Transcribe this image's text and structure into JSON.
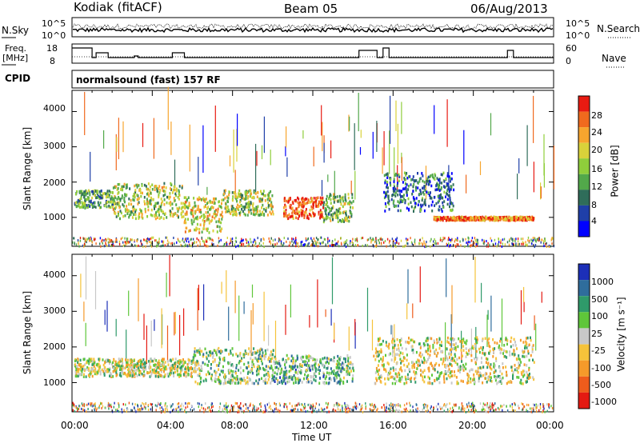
{
  "header": {
    "station": "Kodiak  (fitACF)",
    "beam": "Beam 05",
    "date": "06/Aug/2013"
  },
  "sky_panel": {
    "left_label": "N.Sky",
    "right_label": "N.Search",
    "left_ticks": [
      "10^5",
      "10^0"
    ],
    "right_ticks": [
      "10^5",
      "10^0"
    ]
  },
  "freq_panel": {
    "left_label_line1": "Freq.",
    "left_label_line2": "[MHz]",
    "right_label": "Nave",
    "left_ticks": [
      "18",
      "8"
    ],
    "right_ticks": [
      "60",
      "0"
    ]
  },
  "cpid": {
    "label": "CPID",
    "text": "normalsound (fast) 157 RF"
  },
  "power_panel": {
    "ylabel": "Slant Range [km]",
    "yticks": [
      "4000",
      "3000",
      "2000",
      "1000"
    ],
    "colorbar_label": "Power [dB]",
    "colorbar_ticks": [
      "28",
      "24",
      "20",
      "16",
      "12",
      "8",
      "4"
    ],
    "colors": [
      "#0000ff",
      "#1f3fa8",
      "#2f6d5a",
      "#52a84a",
      "#8fce3b",
      "#d9d23a",
      "#f7a52e",
      "#f06a1e",
      "#e81b12"
    ]
  },
  "velocity_panel": {
    "ylabel": "Slant Range [km]",
    "yticks": [
      "4000",
      "3000",
      "2000",
      "1000"
    ],
    "colorbar_label": "Velocity [m s⁻¹]",
    "colorbar_ticks": [
      "1000",
      "500",
      "100",
      "25",
      "-25",
      "-100",
      "-500",
      "-1000"
    ],
    "colors": [
      "#1c2fb8",
      "#2f6d9c",
      "#2f9a6a",
      "#5fc63a",
      "#c8c8c8",
      "#f5c33a",
      "#f59a2a",
      "#ee5c1c",
      "#e41a12"
    ]
  },
  "x_axis": {
    "label": "Time UT",
    "ticks": [
      "00:00",
      "04:00",
      "08:00",
      "12:00",
      "16:00",
      "20:00",
      "00:00"
    ]
  },
  "chart_data": {
    "type": "heatmap",
    "title": "Kodiak  (fitACF)   Beam 05   06/Aug/2013",
    "xlabel": "Time UT",
    "ylabel": "Slant Range [km]",
    "xlim": [
      "00:00",
      "24:00"
    ],
    "ylim": [
      180,
      4600
    ],
    "panels": [
      {
        "name": "Power",
        "unit": "dB",
        "scale": [
          0,
          30
        ],
        "scatter_regions": [
          {
            "t_start": 0.1,
            "t_end": 2.0,
            "range_min": 1300,
            "range_max": 1800,
            "typical_value": 12
          },
          {
            "t_start": 2.0,
            "t_end": 5.5,
            "range_min": 1000,
            "range_max": 2000,
            "typical_value": 16
          },
          {
            "t_start": 5.5,
            "t_end": 7.5,
            "range_min": 600,
            "range_max": 1600,
            "typical_value": 18
          },
          {
            "t_start": 7.5,
            "t_end": 10.0,
            "range_min": 1100,
            "range_max": 1800,
            "typical_value": 16
          },
          {
            "t_start": 10.5,
            "t_end": 12.5,
            "range_min": 1000,
            "range_max": 1600,
            "typical_value": 26
          },
          {
            "t_start": 12.5,
            "t_end": 14.0,
            "range_min": 900,
            "range_max": 1700,
            "typical_value": 14
          },
          {
            "t_start": 15.5,
            "t_end": 19.0,
            "range_min": 1200,
            "range_max": 2300,
            "typical_value": 8
          },
          {
            "t_start": 18.0,
            "t_end": 23.0,
            "range_min": 950,
            "range_max": 1050,
            "typical_value": 24
          }
        ]
      },
      {
        "name": "Velocity",
        "unit": "m s-1",
        "scale": [
          -1000,
          1000
        ],
        "scatter_regions": [
          {
            "t_start": 0.1,
            "t_end": 6.0,
            "range_min": 1200,
            "range_max": 1700,
            "typical_value": 0
          },
          {
            "t_start": 6.0,
            "t_end": 10.0,
            "range_min": 1000,
            "range_max": 2000,
            "typical_value": 150
          },
          {
            "t_start": 10.0,
            "t_end": 14.0,
            "range_min": 1000,
            "range_max": 1800,
            "typical_value": 300
          },
          {
            "t_start": 15.0,
            "t_end": 23.0,
            "range_min": 1000,
            "range_max": 2300,
            "typical_value": -50
          }
        ]
      }
    ],
    "grid": false
  }
}
